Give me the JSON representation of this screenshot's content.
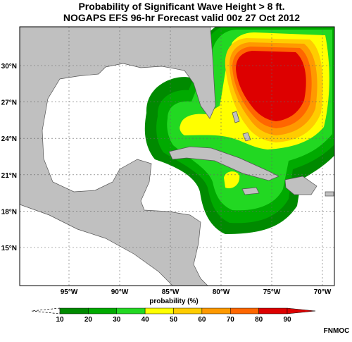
{
  "title": [
    "Probability of Significant Wave Height > 8 ft.",
    "NOGAPS EFS 96-hr Forecast valid 00z 27 Oct 2012"
  ],
  "map": {
    "lon_labels": [
      "95°W",
      "90°W",
      "85°W",
      "80°W",
      "75°W",
      "70°W"
    ],
    "lat_labels": [
      "30°N",
      "27°N",
      "24°N",
      "21°N",
      "18°N",
      "15°N"
    ]
  },
  "colorbar": {
    "label": "probability (%)",
    "ticks": [
      10,
      20,
      30,
      40,
      50,
      60,
      70,
      80,
      90
    ],
    "colors": [
      "#008a00",
      "#00aa00",
      "#22d822",
      "#ffff00",
      "#ffcc00",
      "#ff9900",
      "#ff6600",
      "#dd0000"
    ]
  },
  "credit": "FNMOC"
}
